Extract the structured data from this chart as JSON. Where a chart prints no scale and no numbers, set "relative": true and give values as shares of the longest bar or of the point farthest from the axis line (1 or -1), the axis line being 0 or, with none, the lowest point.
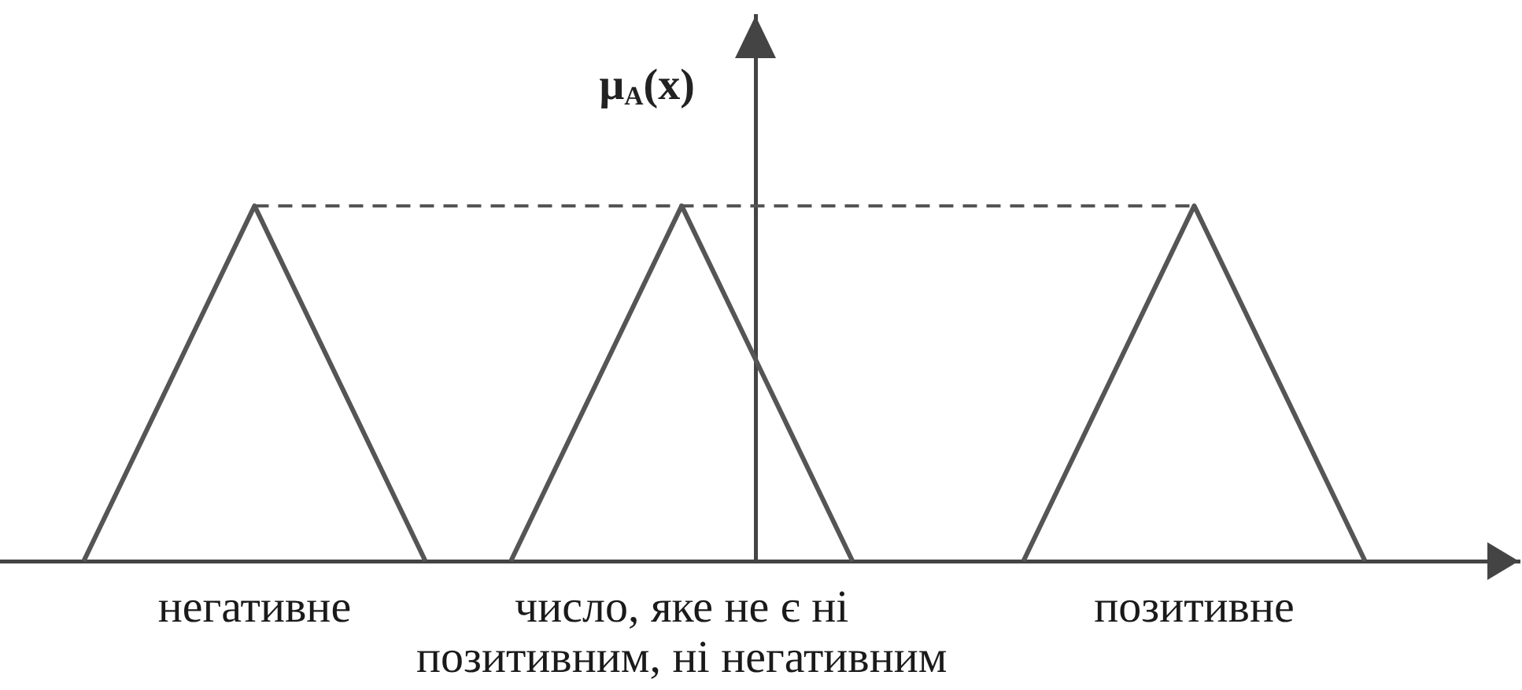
{
  "chart_data": {
    "type": "line",
    "ylabel": "μ$_{A}$(x)",
    "relative": true,
    "categories": [
      null,
      null,
      "негативне",
      null,
      null,
      null,
      null,
      "число, яке не є ні позитивним, ні негативним",
      null,
      null,
      null,
      null,
      null,
      "позитивне",
      null,
      null
    ],
    "tick_labels": "x",
    "marker": "none",
    "line_style": "solid",
    "series": [
      {
        "color": "#555555",
        "values": [
          0,
          0.5,
          1,
          0.5,
          0,
          null,
          null,
          null,
          null,
          null,
          null,
          null,
          null,
          null,
          null,
          null
        ]
      },
      {
        "color": "#555555",
        "values": [
          null,
          null,
          null,
          null,
          null,
          0,
          0.5,
          1,
          0.5,
          0,
          null,
          null,
          null,
          null,
          null,
          null
        ]
      },
      {
        "color": "#555555",
        "values": [
          null,
          null,
          null,
          null,
          null,
          null,
          null,
          null,
          null,
          null,
          null,
          0,
          0.5,
          1,
          0.5,
          0
        ]
      },
      {
        "color": "#555555",
        "values": [
          null,
          null,
          1,
          1,
          1,
          1,
          1,
          1,
          1,
          1,
          1,
          1,
          1,
          1,
          null,
          null
        ],
        "line_style": "dashed"
      }
    ]
  }
}
